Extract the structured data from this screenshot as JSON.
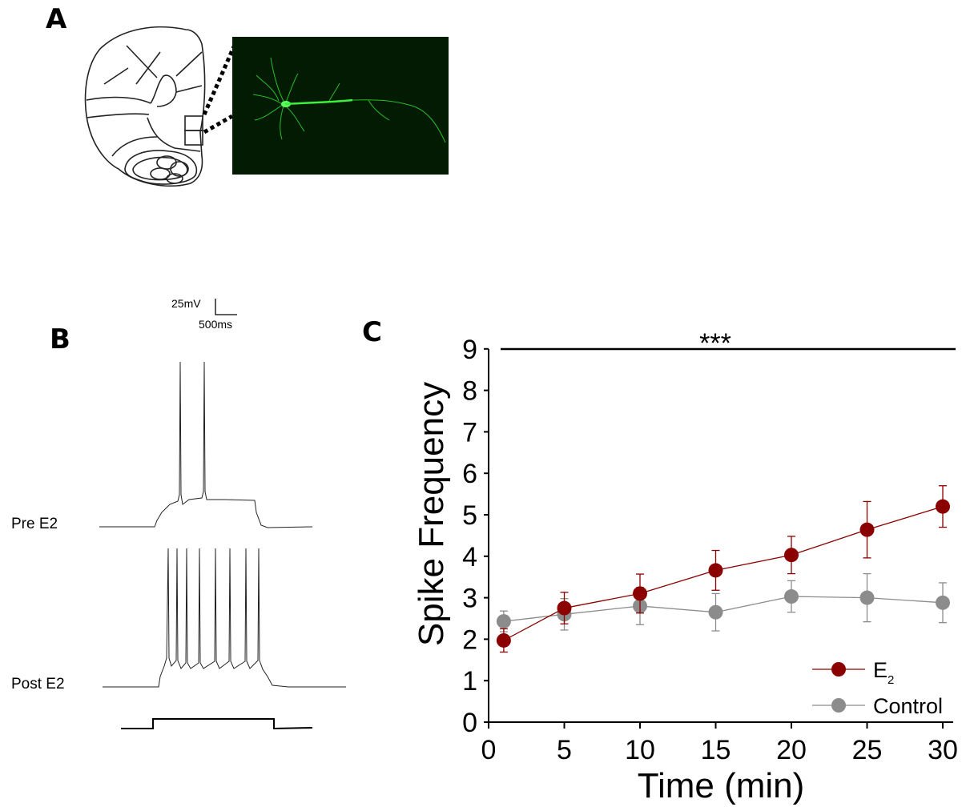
{
  "panels": {
    "a": "A",
    "b": "B",
    "c": "C"
  },
  "panel_b": {
    "scale_voltage": "25mV",
    "scale_time": "500ms",
    "trace_pre": "Pre E2",
    "trace_post": "Post E2"
  },
  "chart_data": {
    "type": "line",
    "title": "",
    "xlabel": "Time (min)",
    "ylabel": "Spike Frequency",
    "x_ticks": [
      0,
      5,
      10,
      15,
      20,
      25,
      30
    ],
    "y_ticks": [
      0,
      1,
      2,
      3,
      4,
      5,
      6,
      7,
      8,
      9
    ],
    "xlim": [
      0,
      30.5
    ],
    "ylim": [
      0,
      9
    ],
    "significance": "***",
    "legend_position": "bottom-right",
    "series": [
      {
        "name": "E",
        "name_subscript": "2",
        "color": "#8b0000",
        "x": [
          1,
          5,
          10,
          15,
          20,
          25,
          30
        ],
        "y": [
          1.97,
          2.75,
          3.1,
          3.66,
          4.03,
          4.64,
          5.2
        ],
        "err": [
          0.28,
          0.38,
          0.47,
          0.48,
          0.45,
          0.68,
          0.5
        ]
      },
      {
        "name": "Control",
        "color": "#8c8c8c",
        "x": [
          1,
          5,
          10,
          15,
          20,
          25,
          30
        ],
        "y": [
          2.43,
          2.6,
          2.8,
          2.65,
          3.03,
          3.0,
          2.88
        ],
        "err": [
          0.25,
          0.38,
          0.45,
          0.45,
          0.38,
          0.58,
          0.48
        ]
      }
    ]
  }
}
